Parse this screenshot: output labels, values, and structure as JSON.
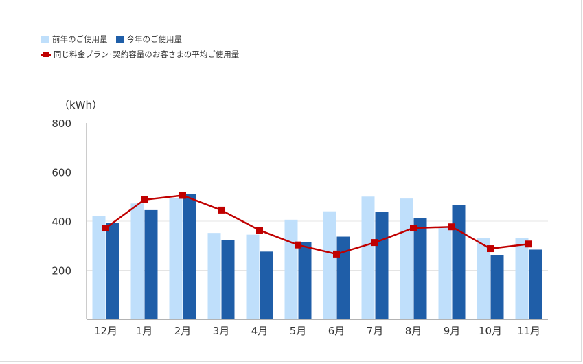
{
  "chart_data": {
    "type": "bar",
    "categories": [
      "12月",
      "1月",
      "2月",
      "3月",
      "4月",
      "5月",
      "6月",
      "7月",
      "8月",
      "9月",
      "10月",
      "11月"
    ],
    "series": [
      {
        "name": "前年のご使用量",
        "kind": "bar",
        "color": "#bfdffb",
        "values": [
          422,
          472,
          495,
          352,
          345,
          406,
          440,
          500,
          492,
          375,
          330,
          330
        ]
      },
      {
        "name": "今年のご使用量",
        "kind": "bar",
        "color": "#1f5ea8",
        "values": [
          392,
          445,
          510,
          323,
          276,
          315,
          337,
          438,
          412,
          467,
          262,
          284
        ]
      },
      {
        "name": "同じ料金プラン･契約容量のお客さまの平均ご使用量",
        "kind": "line",
        "color": "#c00000",
        "values": [
          372,
          487,
          505,
          445,
          363,
          303,
          266,
          313,
          372,
          377,
          288,
          307
        ]
      }
    ],
    "ylabel": "（kWh）",
    "ylim": [
      0,
      800
    ],
    "yticks": [
      "200",
      "400",
      "600",
      "800"
    ],
    "ytick_values": [
      200,
      400,
      600,
      800
    ],
    "grid": true,
    "legend_position": "top-left"
  }
}
